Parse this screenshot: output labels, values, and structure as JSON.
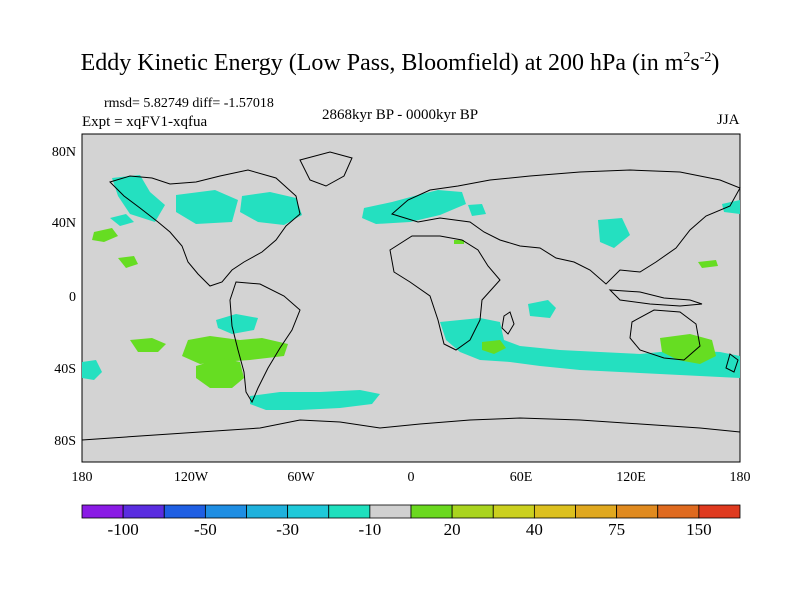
{
  "title": {
    "main": "Eddy Kinetic Energy (Low Pass, Bloomfield) at 200 hPa (in m",
    "sup1": "2",
    "mid": "s",
    "sup2": "-2",
    "end": ")"
  },
  "stats": "rmsd= 5.82749 diff= -1.57018",
  "experiment": "Expt = xqFV1-xqfua",
  "period": "2868kyr BP - 0000kyr BP",
  "season": "JJA",
  "lat_ticks": [
    "80N",
    "40N",
    "0",
    "40S",
    "80S"
  ],
  "lon_ticks": [
    "180",
    "120W",
    "60W",
    "0",
    "60E",
    "120E",
    "180"
  ],
  "colorbar": {
    "colors": [
      "#8a1be5",
      "#5a2de0",
      "#1f5fe3",
      "#1f8ee3",
      "#1fb1dc",
      "#1fc9d9",
      "#1fe0be",
      "#d0d0d0",
      "#6ad81f",
      "#a9d41f",
      "#cbd01f",
      "#dcc01f",
      "#e0a81f",
      "#e08a1f",
      "#df6a1f",
      "#df3a1f"
    ],
    "labels": [
      "-100",
      "-50",
      "-30",
      "-10",
      "20",
      "40",
      "75",
      "150"
    ]
  },
  "map_colors": {
    "background": "#d3d3d3",
    "negative": "#24e0c0",
    "positive": "#66dd22",
    "coast": "#000000"
  }
}
